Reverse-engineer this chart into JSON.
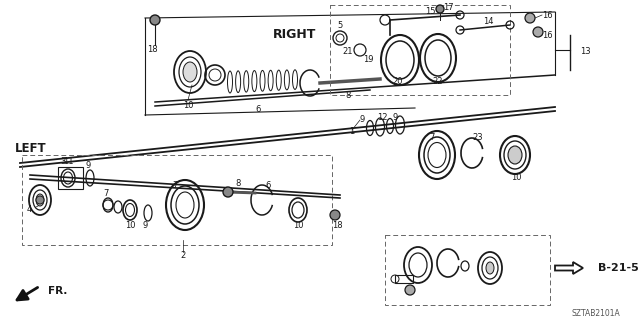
{
  "bg_color": "#ffffff",
  "line_color": "#1a1a1a",
  "label_RIGHT": "RIGHT",
  "label_LEFT": "LEFT",
  "label_FR": "FR.",
  "label_B215": "B-21-5",
  "diagram_code": "SZTAB2101A",
  "figsize": [
    6.4,
    3.2
  ],
  "dpi": 100
}
